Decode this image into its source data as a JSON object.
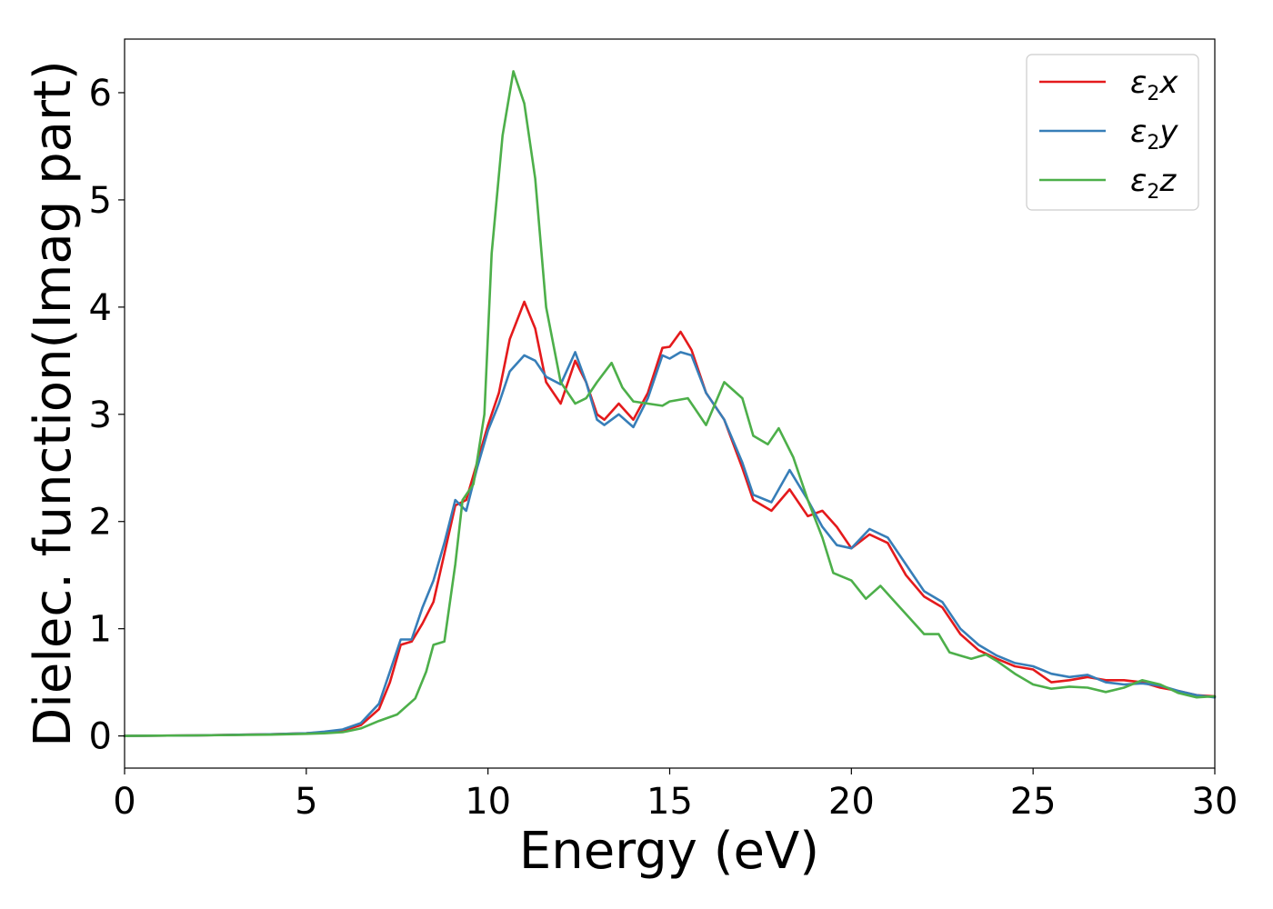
{
  "chart_data": {
    "type": "line",
    "title": "",
    "xlabel": "Energy (eV)",
    "ylabel": "Dielec. function(Imag part)",
    "xlim": [
      0,
      30
    ],
    "ylim": [
      -0.3,
      6.5
    ],
    "xticks": [
      "0",
      "5",
      "10",
      "15",
      "20",
      "25",
      "30"
    ],
    "yticks": [
      "0",
      "1",
      "2",
      "3",
      "4",
      "5",
      "6"
    ],
    "grid": false,
    "legend_position": "top-right",
    "series": [
      {
        "name": "ε2x",
        "legend": {
          "sym": "ε",
          "sub": "2",
          "var": "x"
        },
        "color": "#e41a1c",
        "points": [
          [
            0,
            0.0
          ],
          [
            2,
            0.005
          ],
          [
            4,
            0.015
          ],
          [
            5,
            0.025
          ],
          [
            5.5,
            0.035
          ],
          [
            6,
            0.05
          ],
          [
            6.5,
            0.1
          ],
          [
            7,
            0.25
          ],
          [
            7.3,
            0.5
          ],
          [
            7.6,
            0.85
          ],
          [
            7.9,
            0.88
          ],
          [
            8.2,
            1.05
          ],
          [
            8.5,
            1.25
          ],
          [
            8.8,
            1.7
          ],
          [
            9.1,
            2.15
          ],
          [
            9.4,
            2.2
          ],
          [
            9.7,
            2.55
          ],
          [
            10.0,
            2.9
          ],
          [
            10.3,
            3.2
          ],
          [
            10.6,
            3.7
          ],
          [
            11.0,
            4.05
          ],
          [
            11.3,
            3.8
          ],
          [
            11.6,
            3.3
          ],
          [
            12.0,
            3.1
          ],
          [
            12.4,
            3.5
          ],
          [
            12.7,
            3.3
          ],
          [
            13.0,
            3.0
          ],
          [
            13.2,
            2.95
          ],
          [
            13.6,
            3.1
          ],
          [
            14.0,
            2.95
          ],
          [
            14.4,
            3.2
          ],
          [
            14.8,
            3.62
          ],
          [
            15.0,
            3.63
          ],
          [
            15.3,
            3.77
          ],
          [
            15.6,
            3.6
          ],
          [
            16.0,
            3.2
          ],
          [
            16.5,
            2.95
          ],
          [
            17.0,
            2.5
          ],
          [
            17.3,
            2.2
          ],
          [
            17.8,
            2.1
          ],
          [
            18.3,
            2.3
          ],
          [
            18.8,
            2.05
          ],
          [
            19.2,
            2.1
          ],
          [
            19.6,
            1.95
          ],
          [
            20.0,
            1.75
          ],
          [
            20.5,
            1.88
          ],
          [
            21.0,
            1.8
          ],
          [
            21.5,
            1.5
          ],
          [
            22.0,
            1.3
          ],
          [
            22.5,
            1.2
          ],
          [
            23.0,
            0.95
          ],
          [
            23.5,
            0.8
          ],
          [
            24.0,
            0.72
          ],
          [
            24.5,
            0.65
          ],
          [
            25.0,
            0.62
          ],
          [
            25.5,
            0.5
          ],
          [
            26.0,
            0.52
          ],
          [
            26.5,
            0.55
          ],
          [
            27.0,
            0.52
          ],
          [
            27.5,
            0.52
          ],
          [
            28.0,
            0.5
          ],
          [
            28.5,
            0.45
          ],
          [
            29.0,
            0.42
          ],
          [
            29.5,
            0.38
          ],
          [
            30,
            0.37
          ]
        ]
      },
      {
        "name": "ε2y",
        "legend": {
          "sym": "ε",
          "sub": "2",
          "var": "y"
        },
        "color": "#377eb8",
        "points": [
          [
            0,
            0.0
          ],
          [
            2,
            0.005
          ],
          [
            4,
            0.015
          ],
          [
            5,
            0.025
          ],
          [
            5.5,
            0.04
          ],
          [
            6,
            0.06
          ],
          [
            6.5,
            0.12
          ],
          [
            7,
            0.3
          ],
          [
            7.3,
            0.6
          ],
          [
            7.6,
            0.9
          ],
          [
            7.9,
            0.9
          ],
          [
            8.2,
            1.2
          ],
          [
            8.5,
            1.45
          ],
          [
            8.8,
            1.8
          ],
          [
            9.1,
            2.2
          ],
          [
            9.4,
            2.1
          ],
          [
            9.7,
            2.5
          ],
          [
            10.0,
            2.85
          ],
          [
            10.3,
            3.1
          ],
          [
            10.6,
            3.4
          ],
          [
            11.0,
            3.55
          ],
          [
            11.3,
            3.5
          ],
          [
            11.6,
            3.35
          ],
          [
            12.0,
            3.28
          ],
          [
            12.4,
            3.58
          ],
          [
            12.7,
            3.3
          ],
          [
            13.0,
            2.95
          ],
          [
            13.2,
            2.9
          ],
          [
            13.6,
            3.0
          ],
          [
            14.0,
            2.88
          ],
          [
            14.4,
            3.15
          ],
          [
            14.8,
            3.55
          ],
          [
            15.0,
            3.52
          ],
          [
            15.3,
            3.58
          ],
          [
            15.6,
            3.55
          ],
          [
            16.0,
            3.2
          ],
          [
            16.5,
            2.95
          ],
          [
            17.0,
            2.55
          ],
          [
            17.3,
            2.25
          ],
          [
            17.8,
            2.18
          ],
          [
            18.3,
            2.48
          ],
          [
            18.8,
            2.2
          ],
          [
            19.2,
            1.95
          ],
          [
            19.6,
            1.78
          ],
          [
            20.0,
            1.75
          ],
          [
            20.5,
            1.93
          ],
          [
            21.0,
            1.85
          ],
          [
            21.5,
            1.6
          ],
          [
            22.0,
            1.35
          ],
          [
            22.5,
            1.25
          ],
          [
            23.0,
            1.0
          ],
          [
            23.5,
            0.85
          ],
          [
            24.0,
            0.75
          ],
          [
            24.5,
            0.68
          ],
          [
            25.0,
            0.65
          ],
          [
            25.5,
            0.58
          ],
          [
            26.0,
            0.55
          ],
          [
            26.5,
            0.57
          ],
          [
            27.0,
            0.5
          ],
          [
            27.5,
            0.48
          ],
          [
            28.0,
            0.49
          ],
          [
            28.5,
            0.47
          ],
          [
            29.0,
            0.42
          ],
          [
            29.5,
            0.38
          ],
          [
            30,
            0.36
          ]
        ]
      },
      {
        "name": "ε2z",
        "legend": {
          "sym": "ε",
          "sub": "2",
          "var": "z"
        },
        "color": "#4daf4a",
        "points": [
          [
            0,
            0.0
          ],
          [
            2,
            0.005
          ],
          [
            4,
            0.012
          ],
          [
            5,
            0.02
          ],
          [
            5.5,
            0.025
          ],
          [
            6,
            0.035
          ],
          [
            6.5,
            0.07
          ],
          [
            7,
            0.14
          ],
          [
            7.5,
            0.2
          ],
          [
            8.0,
            0.35
          ],
          [
            8.3,
            0.6
          ],
          [
            8.5,
            0.85
          ],
          [
            8.8,
            0.88
          ],
          [
            9.1,
            1.6
          ],
          [
            9.3,
            2.2
          ],
          [
            9.6,
            2.35
          ],
          [
            9.9,
            3.0
          ],
          [
            10.1,
            4.5
          ],
          [
            10.4,
            5.6
          ],
          [
            10.7,
            6.2
          ],
          [
            11.0,
            5.9
          ],
          [
            11.3,
            5.2
          ],
          [
            11.6,
            4.0
          ],
          [
            12.0,
            3.3
          ],
          [
            12.4,
            3.1
          ],
          [
            12.7,
            3.15
          ],
          [
            13.0,
            3.3
          ],
          [
            13.4,
            3.48
          ],
          [
            13.7,
            3.25
          ],
          [
            14.0,
            3.12
          ],
          [
            14.4,
            3.1
          ],
          [
            14.8,
            3.08
          ],
          [
            15.0,
            3.12
          ],
          [
            15.5,
            3.15
          ],
          [
            16.0,
            2.9
          ],
          [
            16.5,
            3.3
          ],
          [
            17.0,
            3.15
          ],
          [
            17.3,
            2.8
          ],
          [
            17.7,
            2.72
          ],
          [
            18.0,
            2.87
          ],
          [
            18.4,
            2.6
          ],
          [
            18.8,
            2.2
          ],
          [
            19.2,
            1.85
          ],
          [
            19.5,
            1.52
          ],
          [
            20.0,
            1.45
          ],
          [
            20.4,
            1.28
          ],
          [
            20.8,
            1.4
          ],
          [
            21.2,
            1.25
          ],
          [
            21.6,
            1.1
          ],
          [
            22.0,
            0.95
          ],
          [
            22.4,
            0.95
          ],
          [
            22.7,
            0.78
          ],
          [
            23.0,
            0.75
          ],
          [
            23.3,
            0.72
          ],
          [
            23.7,
            0.76
          ],
          [
            24.0,
            0.7
          ],
          [
            24.5,
            0.58
          ],
          [
            25.0,
            0.48
          ],
          [
            25.5,
            0.44
          ],
          [
            26.0,
            0.46
          ],
          [
            26.5,
            0.45
          ],
          [
            27.0,
            0.41
          ],
          [
            27.5,
            0.45
          ],
          [
            28.0,
            0.52
          ],
          [
            28.5,
            0.48
          ],
          [
            29.0,
            0.4
          ],
          [
            29.5,
            0.36
          ],
          [
            30,
            0.37
          ]
        ]
      }
    ]
  }
}
